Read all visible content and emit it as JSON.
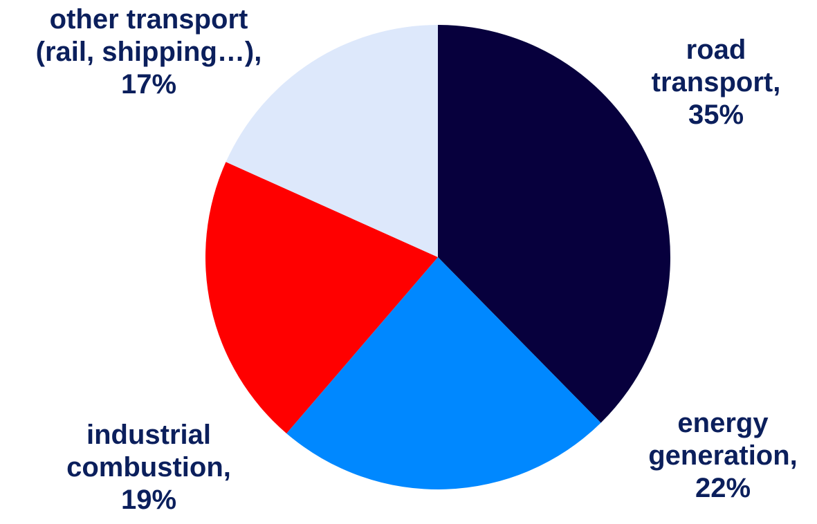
{
  "chart_data": {
    "type": "pie",
    "title": "",
    "slices": [
      {
        "label_lines": [
          "road",
          "transport,",
          "35%"
        ],
        "value": 35,
        "color": "#07003d"
      },
      {
        "label_lines": [
          "energy",
          "generation,",
          "22%"
        ],
        "value": 22,
        "color": "#0088ff"
      },
      {
        "label_lines": [
          "industrial",
          "combustion,",
          "19%"
        ],
        "value": 19,
        "color": "#ff0000"
      },
      {
        "label_lines": [
          "other transport",
          "(rail, shipping…),",
          "17%"
        ],
        "value": 17,
        "color": "#dde8fb"
      }
    ],
    "start_angle_deg": 0,
    "direction": "clockwise",
    "label_color": "#0b1f5c"
  }
}
